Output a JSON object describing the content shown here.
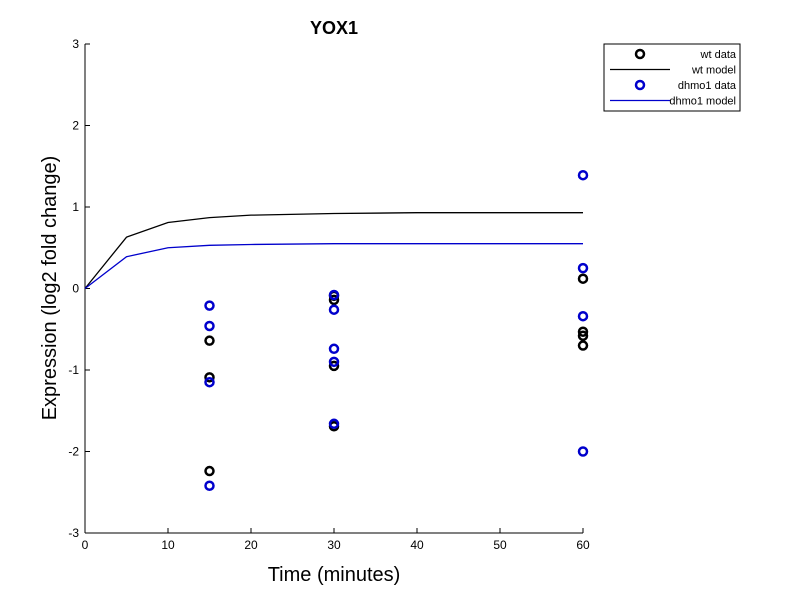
{
  "chart_data": {
    "type": "scatter",
    "title": "YOX1",
    "xlabel": "Time (minutes)",
    "ylabel": "Expression (log2 fold change)",
    "xlim": [
      0,
      60
    ],
    "ylim": [
      -3,
      3
    ],
    "xticks": [
      0,
      10,
      20,
      30,
      40,
      50,
      60
    ],
    "yticks": [
      -3,
      -2,
      -1,
      0,
      1,
      2,
      3
    ],
    "grid": false,
    "legend_placement": "top-right",
    "series": [
      {
        "name": "wt data",
        "kind": "markers",
        "color": "#000000",
        "points": [
          [
            15,
            -0.64
          ],
          [
            15,
            -1.09
          ],
          [
            15,
            -2.24
          ],
          [
            30,
            -0.09
          ],
          [
            30,
            -0.14
          ],
          [
            30,
            -0.95
          ],
          [
            30,
            -1.69
          ],
          [
            60,
            0.12
          ],
          [
            60,
            -0.53
          ],
          [
            60,
            -0.58
          ],
          [
            60,
            -0.7
          ]
        ]
      },
      {
        "name": "wt model",
        "kind": "line",
        "color": "#000000",
        "points": [
          [
            0,
            0
          ],
          [
            5,
            0.63
          ],
          [
            10,
            0.81
          ],
          [
            15,
            0.87
          ],
          [
            20,
            0.9
          ],
          [
            30,
            0.92
          ],
          [
            40,
            0.93
          ],
          [
            50,
            0.93
          ],
          [
            60,
            0.93
          ]
        ]
      },
      {
        "name": "dhmo1 data",
        "kind": "markers",
        "color": "#0000cc",
        "points": [
          [
            15,
            -0.21
          ],
          [
            15,
            -0.46
          ],
          [
            15,
            -1.15
          ],
          [
            15,
            -2.42
          ],
          [
            30,
            -0.08
          ],
          [
            30,
            -0.26
          ],
          [
            30,
            -0.74
          ],
          [
            30,
            -0.9
          ],
          [
            30,
            -1.66
          ],
          [
            60,
            1.39
          ],
          [
            60,
            0.25
          ],
          [
            60,
            -0.34
          ],
          [
            60,
            -2.0
          ]
        ]
      },
      {
        "name": "dhmo1 model",
        "kind": "line",
        "color": "#0000cc",
        "points": [
          [
            0,
            0
          ],
          [
            5,
            0.39
          ],
          [
            10,
            0.5
          ],
          [
            15,
            0.53
          ],
          [
            20,
            0.54
          ],
          [
            30,
            0.55
          ],
          [
            40,
            0.55
          ],
          [
            50,
            0.55
          ],
          [
            60,
            0.55
          ]
        ]
      }
    ]
  }
}
